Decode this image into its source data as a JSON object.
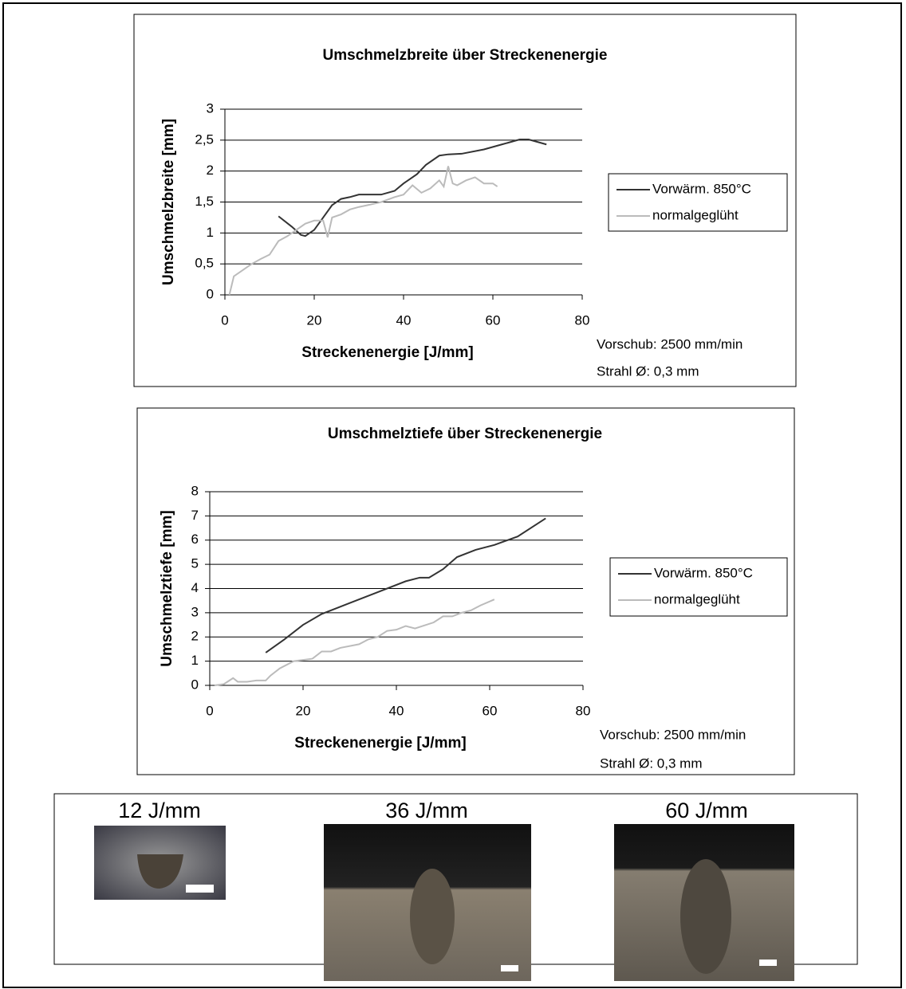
{
  "chart_data": [
    {
      "type": "line",
      "title": "Umschmelzbreite über Streckenenergie",
      "x_label": "Streckenenergie [J/mm]",
      "y_label": "Umschmelzbreite [mm]",
      "annotations": [
        "Vorschub: 2500 mm/min",
        "Strahl Ø: 0,3 mm"
      ],
      "legend": "right",
      "grid": true,
      "xlim": [
        0,
        80
      ],
      "xticks": [
        0,
        20,
        40,
        60,
        80
      ],
      "ylim": [
        0,
        3
      ],
      "yticks": [
        0,
        {
          "value": 0.5,
          "label": "0,5"
        },
        1,
        {
          "value": 1.5,
          "label": "1,5"
        },
        2,
        {
          "value": 2.5,
          "label": "2,5"
        },
        3
      ],
      "series": [
        {
          "name": "Vorwärm. 850°C",
          "color": "#333333",
          "x": [
            12,
            15,
            17,
            18,
            20,
            22,
            24,
            26,
            28,
            30,
            35,
            38,
            40,
            43,
            45,
            48,
            50,
            53,
            58,
            62,
            66,
            68,
            72
          ],
          "values": [
            1.27,
            1.1,
            0.97,
            0.95,
            1.05,
            1.25,
            1.45,
            1.55,
            1.58,
            1.62,
            1.62,
            1.68,
            1.8,
            1.95,
            2.1,
            2.25,
            2.27,
            2.28,
            2.35,
            2.43,
            2.51,
            2.51,
            2.43
          ]
        },
        {
          "name": "normalgeglüht",
          "color": "#bbbbbb",
          "x": [
            1,
            2,
            4,
            6,
            8,
            10,
            12,
            14,
            16,
            18,
            20,
            22,
            23,
            24,
            26,
            28,
            30,
            32,
            35,
            38,
            40,
            42,
            44,
            46,
            48,
            49,
            50,
            51,
            52,
            54,
            56,
            58,
            60,
            61
          ],
          "values": [
            0,
            0.3,
            0.4,
            0.5,
            0.58,
            0.65,
            0.87,
            0.95,
            1.05,
            1.15,
            1.2,
            1.2,
            0.93,
            1.25,
            1.3,
            1.38,
            1.42,
            1.45,
            1.5,
            1.58,
            1.62,
            1.77,
            1.65,
            1.72,
            1.85,
            1.75,
            2.08,
            1.8,
            1.77,
            1.85,
            1.9,
            1.8,
            1.8,
            1.75
          ]
        }
      ]
    },
    {
      "type": "line",
      "title": "Umschmelztiefe über Streckenenergie",
      "x_label": "Streckenenergie [J/mm]",
      "y_label": "Umschmelztiefe [mm]",
      "annotations": [
        "Vorschub: 2500 mm/min",
        "Strahl Ø: 0,3 mm"
      ],
      "legend": "right",
      "grid": true,
      "xlim": [
        0,
        80
      ],
      "xticks": [
        0,
        20,
        40,
        60,
        80
      ],
      "ylim": [
        0,
        8
      ],
      "yticks": [
        0,
        1,
        2,
        3,
        4,
        5,
        6,
        7,
        8
      ],
      "series": [
        {
          "name": "Vorwärm. 850°C",
          "color": "#333333",
          "x": [
            12,
            16,
            20,
            24,
            30,
            36,
            42,
            45,
            47,
            50,
            53,
            57,
            61,
            66,
            72
          ],
          "values": [
            1.35,
            1.9,
            2.5,
            2.95,
            3.4,
            3.85,
            4.3,
            4.45,
            4.45,
            4.8,
            5.3,
            5.6,
            5.8,
            6.15,
            6.9
          ]
        },
        {
          "name": "normalgeglüht",
          "color": "#bbbbbb",
          "x": [
            1,
            3,
            5,
            6,
            8,
            10,
            12,
            13,
            15,
            18,
            20,
            22,
            24,
            26,
            28,
            32,
            34,
            36,
            38,
            40,
            42,
            44,
            48,
            50,
            52,
            54,
            56,
            58,
            61
          ],
          "values": [
            0,
            0.05,
            0.3,
            0.15,
            0.15,
            0.2,
            0.2,
            0.4,
            0.7,
            1.0,
            1.05,
            1.1,
            1.4,
            1.4,
            1.55,
            1.7,
            1.9,
            2.0,
            2.25,
            2.3,
            2.45,
            2.35,
            2.6,
            2.85,
            2.85,
            3.0,
            3.1,
            3.3,
            3.55
          ]
        }
      ]
    }
  ],
  "micrographs": {
    "labels": [
      "12 J/mm",
      "36 J/mm",
      "60 J/mm"
    ]
  }
}
